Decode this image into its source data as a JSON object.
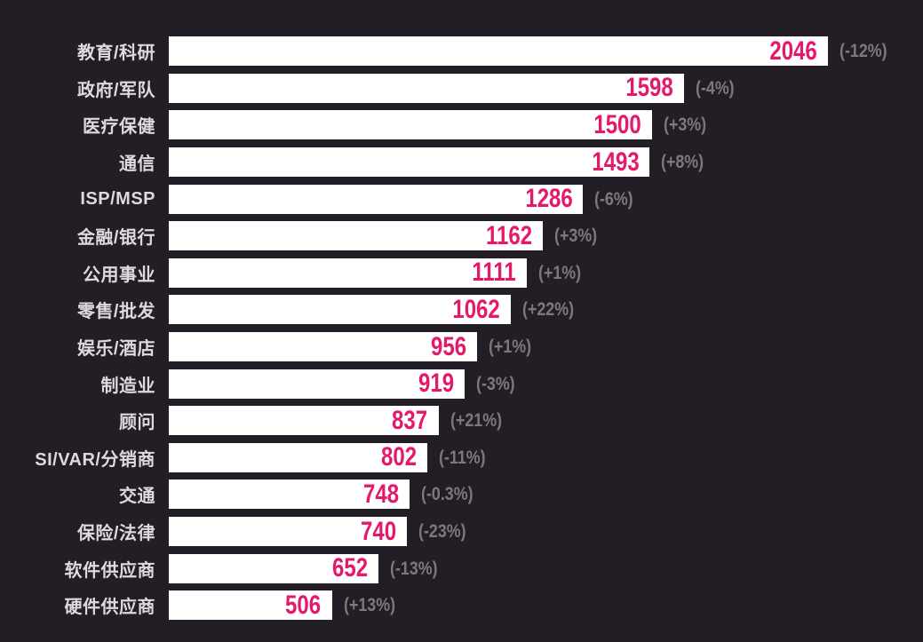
{
  "chart_data": {
    "type": "bar",
    "orientation": "horizontal",
    "title": "",
    "categories": [
      "教育/科研",
      "政府/军队",
      "医疗保健",
      "通信",
      "ISP/MSP",
      "金融/银行",
      "公用事业",
      "零售/批发",
      "娱乐/酒店",
      "制造业",
      "顾问",
      "SI/VAR/分销商",
      "交通",
      "保险/法律",
      "软件供应商",
      "硬件供应商"
    ],
    "values": [
      2046,
      1598,
      1500,
      1493,
      1286,
      1162,
      1111,
      1062,
      956,
      919,
      837,
      802,
      748,
      740,
      652,
      506
    ],
    "changes": [
      "(-12%)",
      "(-4%)",
      "(+3%)",
      "(+8%)",
      "(-6%)",
      "(+3%)",
      "(+1%)",
      "(+22%)",
      "(+1%)",
      "(-3%)",
      "(+21%)",
      "(-11%)",
      "(-0.3%)",
      "(-23%)",
      "(-13%)",
      "(+13%)"
    ],
    "xlim": [
      0,
      2046
    ],
    "grid": false,
    "legend": "none",
    "colors": {
      "background": "#231e25",
      "bar_fill": "#ffffff",
      "value_text": "#e5196c",
      "change_text": "#7b797e",
      "label_text": "#dcdae0"
    }
  }
}
